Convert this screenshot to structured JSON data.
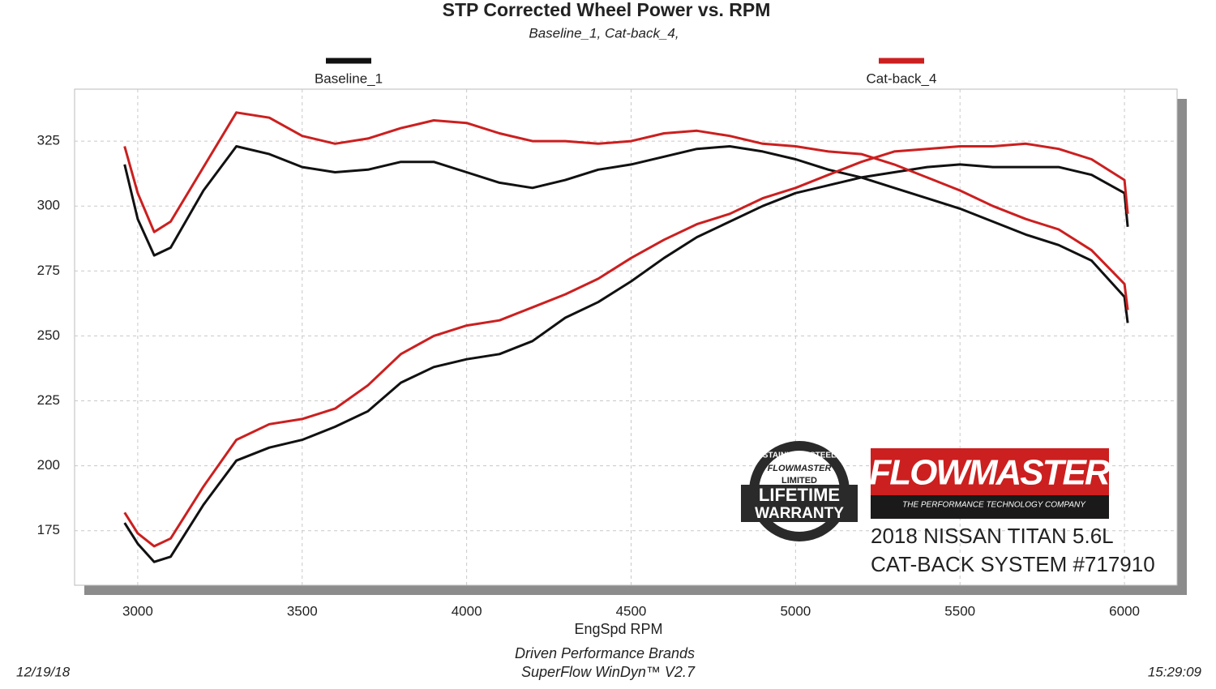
{
  "chart_data": {
    "type": "line",
    "title": "STP Corrected Wheel Power vs. RPM",
    "subtitle": "Baseline_1, Cat-back_4,",
    "x_label": "EngSpd  RPM",
    "footer": [
      "Driven Performance Brands",
      "SuperFlow WinDyn™  V2.7"
    ],
    "date": "12/19/18",
    "time": "15:29:09",
    "x": [
      2960,
      3000,
      3050,
      3100,
      3200,
      3300,
      3400,
      3500,
      3600,
      3700,
      3800,
      3900,
      4000,
      4100,
      4200,
      4300,
      4400,
      4500,
      4600,
      4700,
      4800,
      4900,
      5000,
      5100,
      5200,
      5300,
      5400,
      5500,
      5600,
      5700,
      5800,
      5900,
      6000,
      6010
    ],
    "series": [
      {
        "name": "Baseline_1",
        "color": "#111111",
        "curves": [
          [
            316,
            295,
            281,
            284,
            306,
            323,
            320,
            315,
            313,
            314,
            317,
            317,
            313,
            309,
            307,
            310,
            314,
            316,
            319,
            322,
            323,
            321,
            318,
            314,
            311,
            307,
            303,
            299,
            294,
            289,
            285,
            279,
            265,
            255
          ],
          [
            178,
            170,
            163,
            165,
            185,
            202,
            207,
            210,
            215,
            221,
            232,
            238,
            241,
            243,
            248,
            257,
            263,
            271,
            280,
            288,
            294,
            300,
            305,
            308,
            311,
            313,
            315,
            316,
            315,
            315,
            315,
            312,
            305,
            292
          ]
        ]
      },
      {
        "name": "Cat-back_4",
        "color": "#cc1f1f",
        "curves": [
          [
            323,
            305,
            290,
            294,
            315,
            336,
            334,
            327,
            324,
            326,
            330,
            333,
            332,
            328,
            325,
            325,
            324,
            325,
            328,
            329,
            327,
            324,
            323,
            321,
            320,
            316,
            311,
            306,
            300,
            295,
            291,
            283,
            270,
            260
          ],
          [
            182,
            174,
            169,
            172,
            192,
            210,
            216,
            218,
            222,
            231,
            243,
            250,
            254,
            256,
            261,
            266,
            272,
            280,
            287,
            293,
            297,
            303,
            307,
            312,
            317,
            321,
            322,
            323,
            323,
            324,
            322,
            318,
            310,
            297
          ]
        ]
      }
    ],
    "xlim": [
      2808,
      6160
    ],
    "ylim": [
      154,
      345
    ],
    "xticks": [
      3000,
      3500,
      4000,
      4500,
      5000,
      5500,
      6000
    ],
    "yticks": [
      175,
      200,
      225,
      250,
      275,
      300,
      325
    ],
    "grid": true,
    "badge": [
      "STAINLESS STEEL",
      "FLOWMASTER",
      "LIMITED",
      "LIFETIME",
      "WARRANTY"
    ],
    "brand": {
      "name": "FLOWMASTER",
      "tagline": "THE PERFORMANCE TECHNOLOGY COMPANY"
    },
    "caption": [
      "2018 NISSAN TITAN 5.6L",
      "CAT-BACK SYSTEM #717910"
    ]
  }
}
